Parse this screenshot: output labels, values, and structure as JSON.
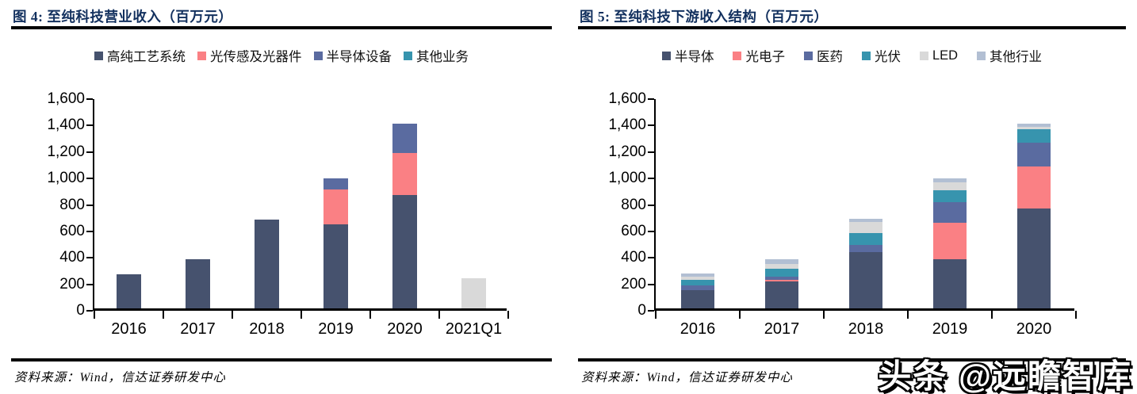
{
  "watermark": {
    "text": "头条 @远瞻智库"
  },
  "panels": [
    {
      "title": "图 4:  至纯科技营业收入（百万元）",
      "source": "资料来源：Wind，信达证券研发中心"
    },
    {
      "title": "图 5:  至纯科技下游收入结构（百万元）",
      "source": "资料来源：Wind，信达证券研发中心"
    }
  ],
  "chart_data": [
    {
      "type": "bar",
      "stacked": true,
      "title": "至纯科技营业收入（百万元）",
      "categories": [
        "2016",
        "2017",
        "2018",
        "2019",
        "2020",
        "2021Q1"
      ],
      "series": [
        {
          "name": "高纯工艺系统",
          "color": "#46526e",
          "values": [
            260,
            370,
            670,
            635,
            860,
            0
          ]
        },
        {
          "name": "光传感及光器件",
          "color": "#fa8084",
          "values": [
            0,
            0,
            0,
            265,
            315,
            0
          ]
        },
        {
          "name": "半导体设备",
          "color": "#5a6ba0",
          "values": [
            0,
            0,
            0,
            85,
            220,
            0
          ]
        },
        {
          "name": "其他业务",
          "color": "#3794ae",
          "values": [
            0,
            0,
            0,
            0,
            0,
            0
          ]
        },
        {
          "name": "",
          "color": "#d9d9d9",
          "legend": false,
          "values": [
            0,
            0,
            0,
            0,
            0,
            230
          ]
        }
      ],
      "ylim": [
        0,
        1600
      ],
      "ytick": 200,
      "legend_position": "top",
      "grid": false
    },
    {
      "type": "bar",
      "stacked": true,
      "title": "至纯科技下游收入结构（百万元）",
      "categories": [
        "2016",
        "2017",
        "2018",
        "2019",
        "2020"
      ],
      "series": [
        {
          "name": "半导体",
          "color": "#46526e",
          "values": [
            135,
            205,
            425,
            370,
            755
          ]
        },
        {
          "name": "光电子",
          "color": "#fa8084",
          "values": [
            0,
            10,
            0,
            275,
            320
          ]
        },
        {
          "name": "医药",
          "color": "#5a6ba0",
          "values": [
            40,
            25,
            55,
            160,
            175
          ]
        },
        {
          "name": "光伏",
          "color": "#3794ae",
          "values": [
            40,
            60,
            90,
            90,
            105
          ]
        },
        {
          "name": "LED",
          "color": "#d9d9d9",
          "values": [
            25,
            35,
            85,
            60,
            15
          ]
        },
        {
          "name": "其他行业",
          "color": "#b2bfd3",
          "values": [
            25,
            35,
            20,
            25,
            25
          ]
        }
      ],
      "ylim": [
        0,
        1600
      ],
      "ytick": 200,
      "legend_position": "top",
      "grid": false
    }
  ]
}
